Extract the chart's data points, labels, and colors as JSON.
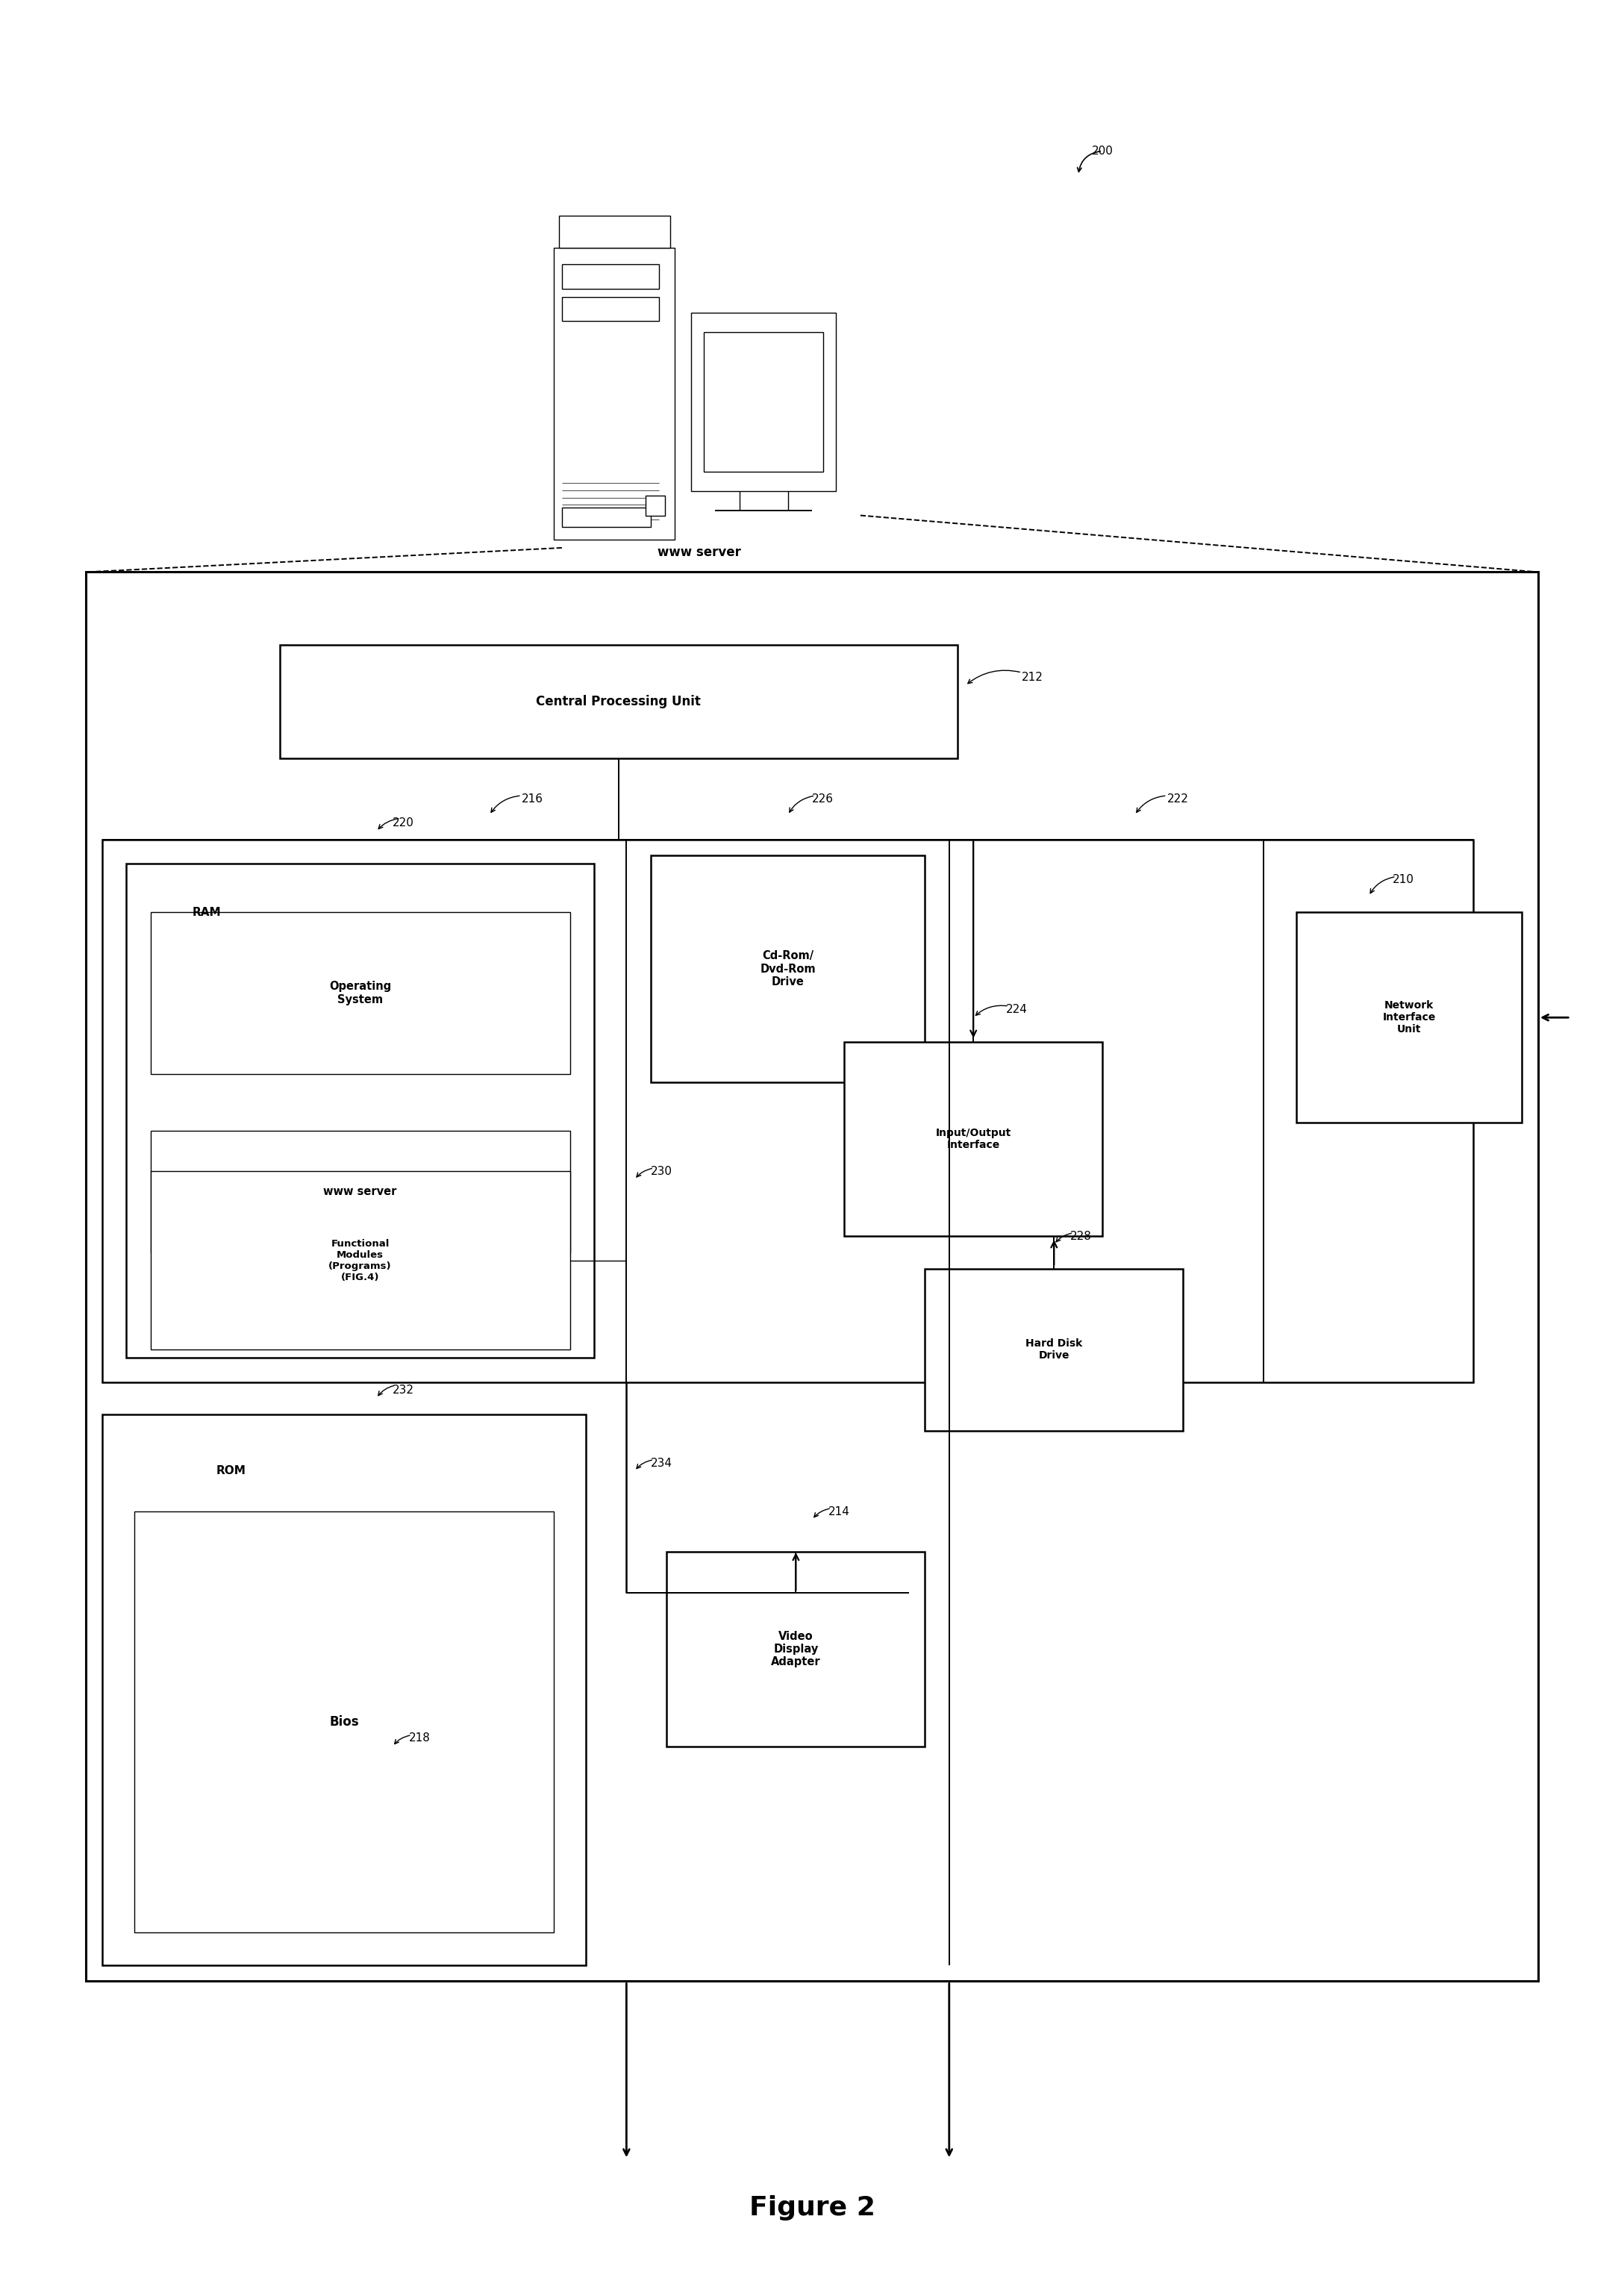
{
  "title": "Figure 2",
  "bg_color": "#ffffff",
  "fig_width": 21.76,
  "fig_height": 30.52,
  "cpu_label": "Central Processing Unit",
  "ram_label": "RAM",
  "os_label": "Operating\nSystem",
  "www_label": "www server",
  "func_label": "Functional\nModules\n(Programs)\n(FIG.4)",
  "rom_label": "ROM",
  "bios_label": "Bios",
  "cdrom_label": "Cd-Rom/\nDvd-Rom\nDrive",
  "io_label": "Input/Output\nInterface",
  "niu_label": "Network\nInterface\nUnit",
  "hdd_label": "Hard Disk\nDrive",
  "vda_label": "Video\nDisplay\nAdapter",
  "www_server_label": "www server",
  "ref_200": "200",
  "ref_210": "210",
  "ref_212": "212",
  "ref_214": "214",
  "ref_216": "216",
  "ref_218": "218",
  "ref_220": "220",
  "ref_222": "222",
  "ref_224": "224",
  "ref_226": "226",
  "ref_228": "228",
  "ref_230": "230",
  "ref_232": "232",
  "ref_234": "234"
}
